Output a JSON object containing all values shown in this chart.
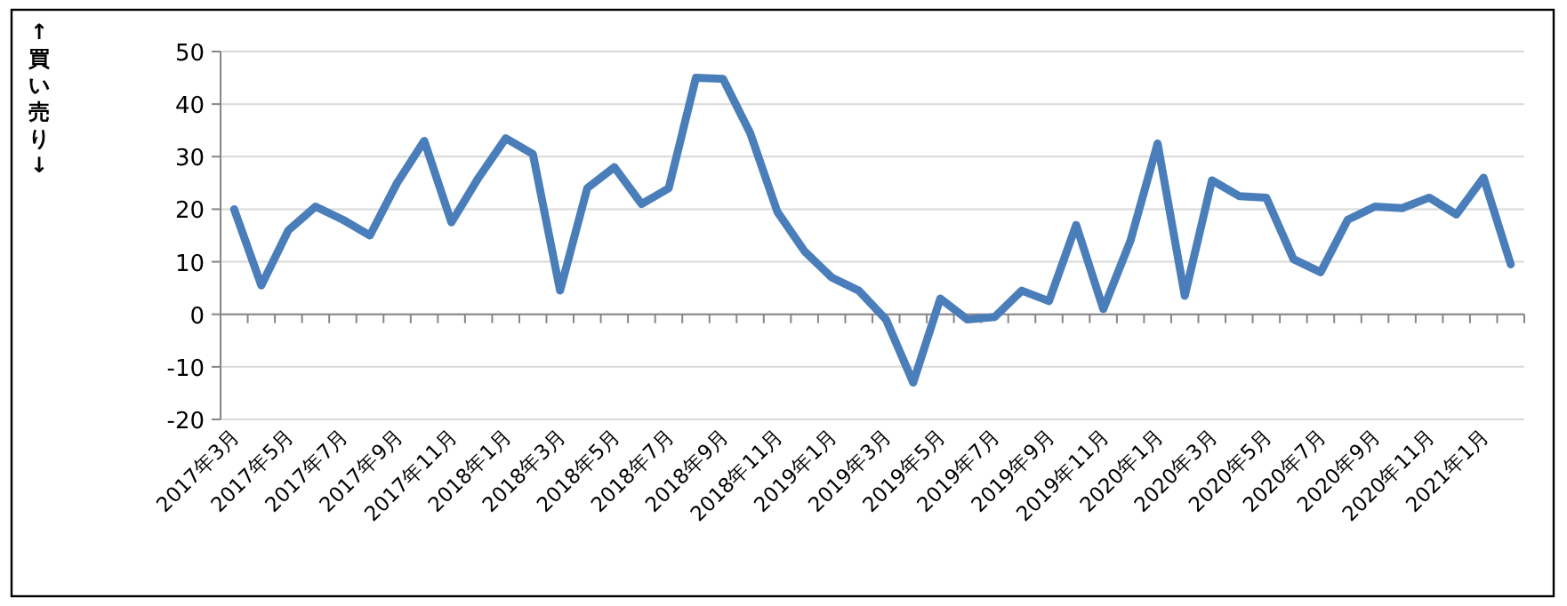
{
  "chart_data": {
    "type": "line",
    "ylabel": "↑買い売り↓",
    "categories": [
      "2017年3月",
      null,
      "2017年5月",
      null,
      "2017年7月",
      null,
      "2017年9月",
      null,
      "2017年11月",
      null,
      "2018年1月",
      null,
      "2018年3月",
      null,
      "2018年5月",
      null,
      "2018年7月",
      null,
      "2018年9月",
      null,
      "2018年11月",
      null,
      "2019年1月",
      null,
      "2019年3月",
      null,
      "2019年5月",
      null,
      "2019年7月",
      null,
      "2019年9月",
      null,
      "2019年11月",
      null,
      "2020年1月",
      null,
      "2020年3月",
      null,
      "2020年5月",
      null,
      "2020年7月",
      null,
      "2020年9月",
      null,
      "2020年11月",
      null,
      "2021年1月",
      null
    ],
    "series": [
      {
        "color": "#4a7ebb",
        "values": [
          20,
          5.5,
          16,
          20.5,
          18,
          15,
          25,
          33,
          17.5,
          26,
          33.5,
          30.5,
          4.5,
          24,
          28,
          21,
          24,
          45,
          44.8,
          34.5,
          19.5,
          12,
          7,
          4.5,
          -1,
          -13,
          3,
          -1,
          -0.5,
          4.5,
          2.5,
          17,
          1,
          14,
          32.5,
          3.5,
          25.5,
          22.5,
          22.2,
          10.5,
          8,
          18,
          20.5,
          20.2,
          22.2,
          19,
          26,
          9.5
        ]
      }
    ],
    "ylim": [
      -20,
      50
    ],
    "yticks": [
      -20,
      -10,
      0,
      10,
      20,
      30,
      40,
      50
    ],
    "grid": "y",
    "marker": "none",
    "line_style": "solid"
  }
}
